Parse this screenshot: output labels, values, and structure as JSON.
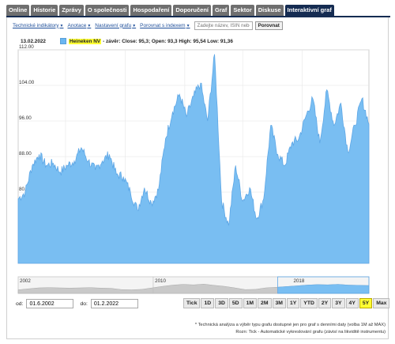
{
  "tabs": [
    {
      "label": "Online",
      "active": false
    },
    {
      "label": "Historie",
      "active": false
    },
    {
      "label": "Zprávy",
      "active": false
    },
    {
      "label": "O společnosti",
      "active": false
    },
    {
      "label": "Hospodaření",
      "active": false
    },
    {
      "label": "Doporučení",
      "active": false
    },
    {
      "label": "Graf",
      "active": false
    },
    {
      "label": "Sektor",
      "active": false
    },
    {
      "label": "Diskuse",
      "active": false
    },
    {
      "label": "Interaktivní graf",
      "active": true
    }
  ],
  "toolbar": {
    "indicators": "Technické indikátory",
    "annotations": "Anotace",
    "settings": "Nastavení grafu",
    "compare_index": "Porovnat s indexem",
    "search_placeholder": "Zadejte název, ISIN nebo",
    "compare_button": "Porovnat"
  },
  "legend": {
    "date": "13.02.2022",
    "series_name": "Heineken NV",
    "stats": "- závěr: Close: 95,3; Open: 93,3 High: 95,54 Low: 91,36"
  },
  "chart_data": {
    "type": "area",
    "series": [
      {
        "name": "Heineken NV",
        "color": "#79bef2"
      }
    ],
    "yticks": [
      "112.00",
      "104.00",
      "96.00",
      "88.00",
      "80.00",
      "72.00",
      "64.00"
    ],
    "ylim": [
      64,
      112
    ],
    "x": [
      0,
      2,
      4,
      6,
      8,
      10,
      12,
      14,
      16,
      18,
      20,
      22,
      24,
      26,
      28,
      30,
      32,
      34,
      36,
      38,
      40,
      42,
      44,
      46,
      48,
      50,
      52,
      54,
      56,
      58,
      60,
      62,
      64,
      66,
      68,
      70,
      72,
      74,
      76,
      78,
      80,
      82,
      84,
      86,
      88,
      90,
      92,
      94,
      96,
      98,
      100
    ],
    "values": [
      78.5,
      80,
      86,
      88.5,
      86,
      86.5,
      84.5,
      86,
      87,
      90,
      87,
      85,
      87,
      88.5,
      84,
      83.5,
      80,
      76,
      81,
      77.5,
      80.5,
      92,
      98,
      102,
      97,
      101.5,
      104.5,
      96,
      111,
      78,
      72.5,
      86,
      78,
      81,
      74,
      78.5,
      95,
      88.5,
      86,
      91,
      92,
      97,
      101,
      91,
      103,
      95,
      100,
      89,
      95,
      101,
      95.3
    ],
    "nav": {
      "start_label": "2002",
      "mid_label": "2010",
      "end_label": "2018",
      "selected_from": 0.74,
      "values": [
        78,
        82,
        86,
        87,
        86,
        85,
        86,
        87,
        85,
        84,
        79,
        78,
        80,
        86,
        92,
        97,
        100,
        98,
        101,
        96,
        92,
        86,
        79,
        80,
        86,
        88,
        91,
        94,
        97,
        99,
        98,
        100,
        97,
        96,
        95
      ]
    }
  },
  "range": {
    "from_label": "od:",
    "from_value": "01.6.2002",
    "to_label": "do:",
    "to_value": "01.2.2022",
    "buttons": [
      {
        "label": "Tick",
        "active": false
      },
      {
        "label": "1D",
        "active": false
      },
      {
        "label": "3D",
        "active": false
      },
      {
        "label": "5D",
        "active": false
      },
      {
        "label": "1M",
        "active": false
      },
      {
        "label": "2M",
        "active": false
      },
      {
        "label": "3M",
        "active": false
      },
      {
        "label": "1Y",
        "active": false
      },
      {
        "label": "YTD",
        "active": false
      },
      {
        "label": "2Y",
        "active": false
      },
      {
        "label": "3Y",
        "active": false
      },
      {
        "label": "4Y",
        "active": false
      },
      {
        "label": "5Y",
        "active": true
      },
      {
        "label": "Max",
        "active": false
      }
    ]
  },
  "footnotes": [
    "* Technická analýza a výběr typu grafu dostupné jen pro graf s denními daty (volba 1M až MAX)",
    "Rozn: Tick - Automatické vykreslování grafu (závisí na likviditě instrumentu)"
  ],
  "colors": {
    "accent": "#152c52",
    "area": "#79bef2",
    "area_stroke": "#5ea7e6",
    "highlight": "#ffff33"
  }
}
